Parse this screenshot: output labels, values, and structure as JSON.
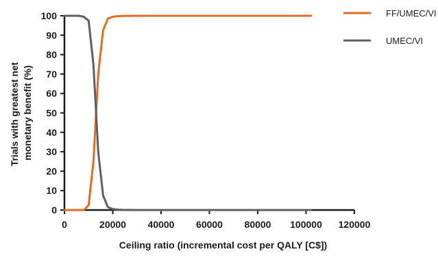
{
  "chart_data": {
    "type": "line",
    "xlabel": "Ceiling ratio (incremental cost per QALY [C$])",
    "ylabel": [
      "Trials with greatest net",
      "monetary benefit (%)"
    ],
    "xlim": [
      0,
      120000
    ],
    "ylim": [
      0,
      100
    ],
    "x_ticks": [
      0,
      20000,
      40000,
      60000,
      80000,
      100000,
      120000
    ],
    "x_tick_labels": [
      "0",
      "20000",
      "40000",
      "60000",
      "80000",
      "100000",
      "120000"
    ],
    "y_ticks": [
      0,
      10,
      20,
      30,
      40,
      50,
      60,
      70,
      80,
      90,
      100
    ],
    "y_tick_labels": [
      "0",
      "10",
      "20",
      "30",
      "40",
      "50",
      "60",
      "70",
      "80",
      "90",
      "100"
    ],
    "grid": false,
    "legend_position": "top-right",
    "series": [
      {
        "name": "FF/UMEC/VI",
        "color": "#e36c1f",
        "x": [
          0,
          2000,
          4000,
          6000,
          8000,
          10000,
          12000,
          14000,
          16000,
          18000,
          20000,
          22000,
          24000,
          30000,
          40000,
          60000,
          80000,
          100000,
          102000
        ],
        "y": [
          0,
          0,
          0,
          0,
          0,
          2.5,
          25,
          70,
          92.5,
          98.5,
          99.5,
          99.8,
          99.9,
          100,
          100,
          100,
          100,
          100,
          100
        ]
      },
      {
        "name": "UMEC/VI",
        "color": "#5f5f5f",
        "x": [
          0,
          2000,
          4000,
          6000,
          8000,
          10000,
          12000,
          14000,
          16000,
          18000,
          20000,
          22000,
          24000,
          30000,
          40000,
          60000,
          80000,
          100000,
          102000
        ],
        "y": [
          100,
          100,
          100,
          100,
          99.5,
          97.5,
          75,
          30,
          7.5,
          1.5,
          0.5,
          0.2,
          0.1,
          0,
          0,
          0,
          0,
          0,
          0
        ]
      }
    ]
  }
}
